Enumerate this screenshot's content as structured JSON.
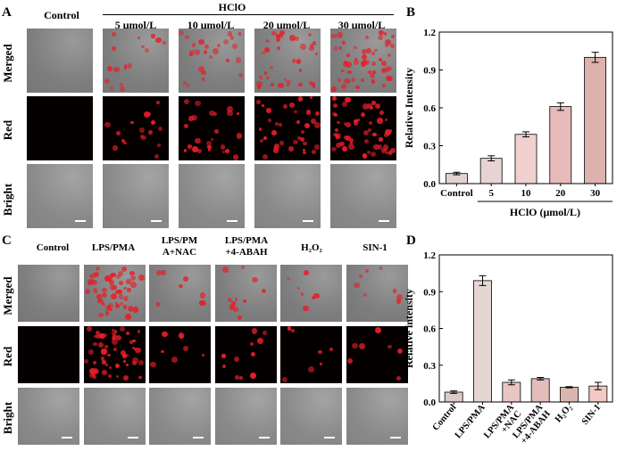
{
  "panel_a": {
    "letter": "A",
    "group_label": "HClO",
    "columns": [
      "Control",
      "5 μmol/L",
      "10 μmol/L",
      "20 μmol/L",
      "30 μmol/L"
    ],
    "rows": [
      "Merged",
      "Red",
      "Bright"
    ],
    "fluorescence_level": [
      0,
      0.3,
      0.45,
      0.65,
      1.0
    ]
  },
  "panel_c": {
    "letter": "C",
    "columns": [
      "Control",
      "LPS/PMA",
      "LPS/PM\nA+NAC",
      "LPS/PMA\n+4-ABAH",
      "H₂O₂",
      "SIN-1"
    ],
    "rows": [
      "Merged",
      "Red",
      "Bright"
    ],
    "fluorescence_level": [
      0,
      1.0,
      0.15,
      0.2,
      0.12,
      0.15
    ]
  },
  "chart_data": [
    {
      "panel": "B",
      "type": "bar",
      "categories": [
        "Control",
        "5",
        "10",
        "20",
        "30"
      ],
      "values": [
        0.08,
        0.2,
        0.39,
        0.61,
        1.0
      ],
      "errors": [
        0.01,
        0.02,
        0.02,
        0.03,
        0.04
      ],
      "colors": [
        "#e2d2d2",
        "#e8d2d2",
        "#f1d0d0",
        "#e8baba",
        "#ddb1ac"
      ],
      "ylabel": "Relative Intensity",
      "xlabel": "HClO (μmol/L)",
      "ylim": [
        0,
        1.2
      ],
      "yticks": [
        "0.0",
        "0.3",
        "0.6",
        "0.9",
        "1.2"
      ],
      "bracket_from_category": 1
    },
    {
      "panel": "D",
      "type": "bar",
      "categories": [
        "Control",
        "LPS/PMA",
        "LPS/PMA\n+NAC",
        "LPS/PMA\n+4-ABAH",
        "H₂O₂",
        "SIN-1"
      ],
      "values": [
        0.08,
        0.99,
        0.16,
        0.19,
        0.12,
        0.13
      ],
      "errors": [
        0.01,
        0.04,
        0.02,
        0.01,
        0.005,
        0.03
      ],
      "colors": [
        "#dcc9c9",
        "#e5d6d4",
        "#e8c6c3",
        "#e4bcba",
        "#dbb6b0",
        "#f3c8c6"
      ],
      "ylabel": "Relative intensity",
      "xlabel": "",
      "ylim": [
        0,
        1.2
      ],
      "yticks": [
        "0.0",
        "0.3",
        "0.6",
        "0.9",
        "1.2"
      ]
    }
  ]
}
